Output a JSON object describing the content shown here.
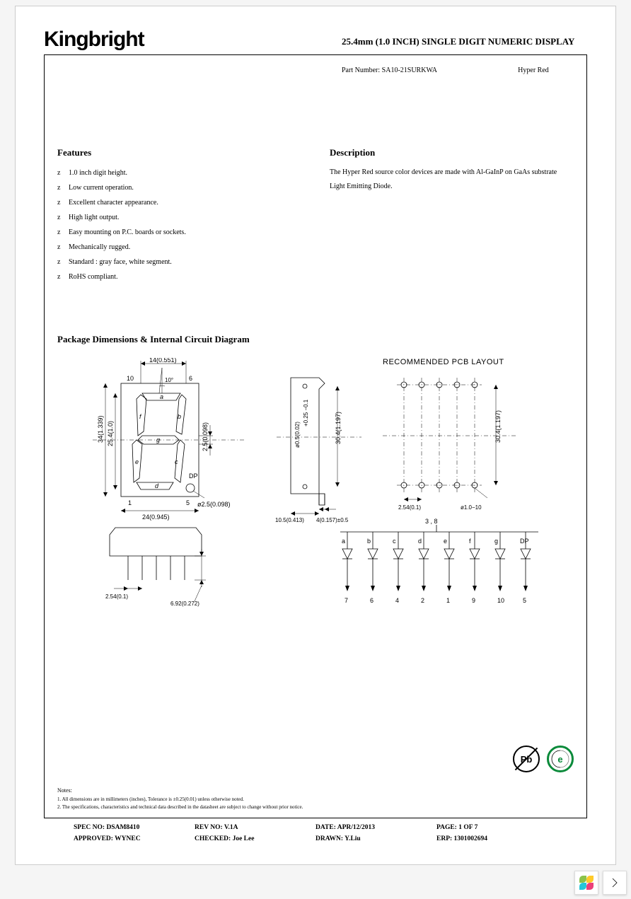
{
  "logo": "Kingbright",
  "title": "25.4mm (1.0 INCH) SINGLE DIGIT NUMERIC DISPLAY",
  "part_label": "Part Number:",
  "part_number": "SA10-21SURKWA",
  "part_color": "Hyper Red",
  "features_head": "Features",
  "features": [
    "1.0 inch digit height.",
    "Low current operation.",
    "Excellent character appearance.",
    "High light output.",
    "Easy mounting on P.C. boards or sockets.",
    "Mechanically rugged.",
    "Standard : gray face, white segment.",
    "RoHS compliant."
  ],
  "description_head": "Description",
  "description": "The Hyper Red source color devices are made with Al-GaInP on GaAs substrate Light Emitting Diode.",
  "pkg_head": "Package Dimensions & Internal Circuit Diagram",
  "pcb_title": "RECOMMENDED PCB LAYOUT",
  "dims": {
    "top_w": "14(0.551)",
    "pin_top_l": "10",
    "pin_top_r": "6",
    "tilt": "10°",
    "seg_a": "a",
    "seg_b": "b",
    "seg_c": "c",
    "seg_d": "d",
    "seg_e": "e",
    "seg_f": "f",
    "seg_g": "g",
    "seg_dp": "DP",
    "h_out": "34(1.339)",
    "h_dig": "25.4(1.0)",
    "seg_w": "2.5(0.098)",
    "dp_dia": "ø2.5(0.098)",
    "pin_bot_l": "1",
    "pin_bot_r": "5",
    "w_out": "24(0.945)",
    "side_w": "10.5(0.413)",
    "side_pin": "4(0.157)±0.5",
    "side_hole": "ø0.5(0.02)",
    "side_tol": "+0.25\n−0.1",
    "side_h": "30.4(1.197)",
    "pcb_h": "30.4(1.197)",
    "pcb_pitch": "2.54(0.1)",
    "pcb_hole": "ø1.0−10",
    "bot_pitch": "2.54(0.1)",
    "bot_lead": "6.92(0.272)",
    "circ_top": "3 , 8",
    "circ_pins_lab": [
      "a",
      "b",
      "c",
      "d",
      "e",
      "f",
      "g",
      "DP"
    ],
    "circ_pins_num": [
      "7",
      "6",
      "4",
      "2",
      "1",
      "9",
      "10",
      "5"
    ]
  },
  "badge_pb": "Pb",
  "badge_e": "e",
  "notes_title": "Notes:",
  "notes": [
    "1. All dimensions are in millimeters (inches), Tolerance is ±0.25(0.01) unless otherwise noted.",
    "2. The specifications, characteristics and technical data described in the datasheet are subject to change without prior notice."
  ],
  "footer": {
    "spec": "SPEC NO: DSAM8410",
    "rev": "REV NO: V.1A",
    "date": "DATE: APR/12/2013",
    "page": "PAGE: 1 OF 7",
    "approved": "APPROVED: WYNEC",
    "checked": "CHECKED: Joe Lee",
    "drawn": "DRAWN: Y.Liu",
    "erp": "ERP: 1301002694"
  }
}
